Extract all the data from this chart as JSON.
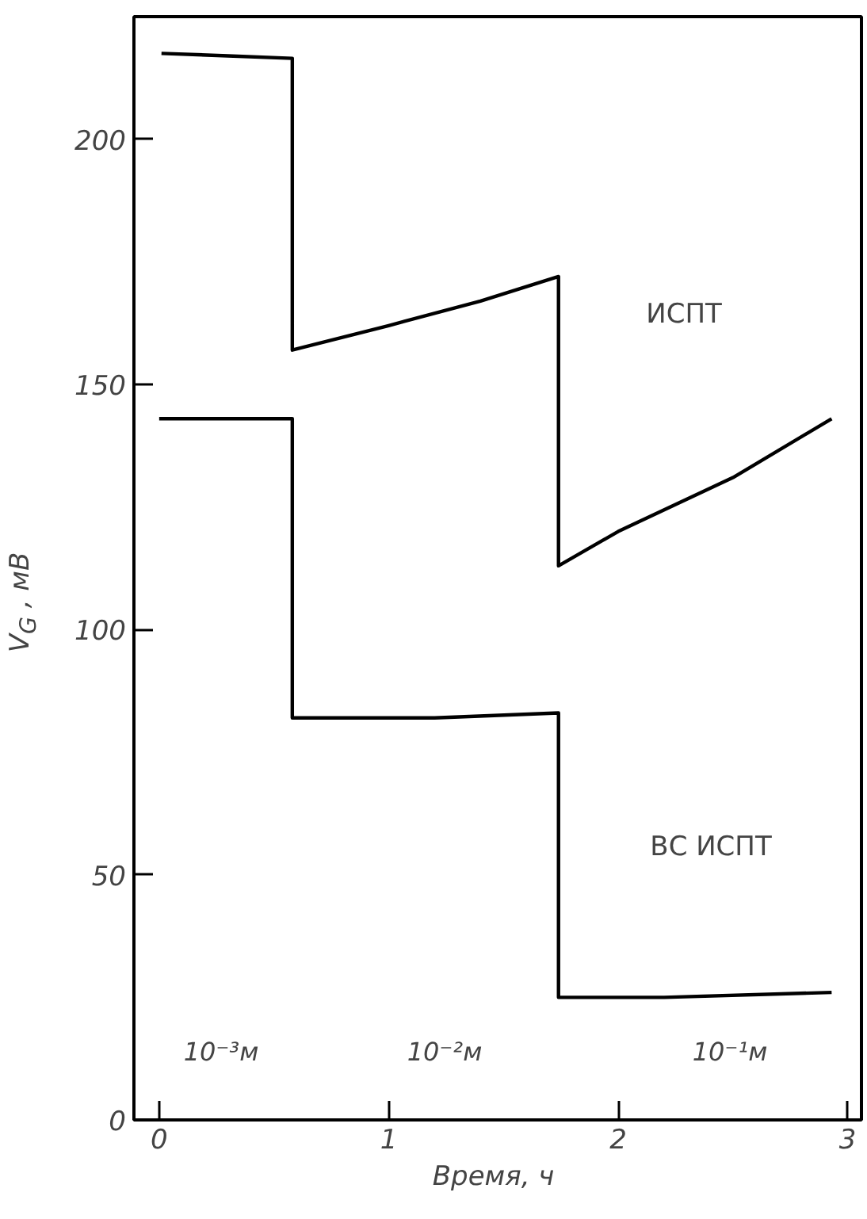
{
  "chart_data": {
    "type": "line",
    "xlabel": "Время,  ч",
    "ylabel": "V$_{G}$ , мВ",
    "xlim": [
      -0.11,
      3.06
    ],
    "ylim": [
      0,
      225
    ],
    "xticks": [
      0,
      1,
      2,
      3
    ],
    "yticks": [
      0,
      50,
      100,
      150,
      200
    ],
    "grid": false,
    "marker": "none",
    "line_style": "solid",
    "series": [
      {
        "color": "#000000",
        "x": [
          0.01,
          0.3,
          0.58,
          0.58,
          1.0,
          1.4,
          1.74,
          1.74,
          2.0,
          2.5,
          2.93
        ],
        "values": [
          217.5,
          217,
          216.5,
          157,
          162,
          167,
          172,
          113,
          120,
          131,
          143
        ]
      },
      {
        "color": "#000000",
        "x": [
          0,
          0.3,
          0.58,
          0.58,
          1.2,
          1.74,
          1.74,
          2.2,
          2.93
        ],
        "values": [
          143,
          143,
          143,
          82,
          82,
          83,
          25,
          25,
          26
        ]
      }
    ],
    "annotations": [
      "ИСПТ",
      "ВС ИСПТ",
      "10⁻³м",
      "10⁻²м",
      "10⁻¹м"
    ]
  }
}
